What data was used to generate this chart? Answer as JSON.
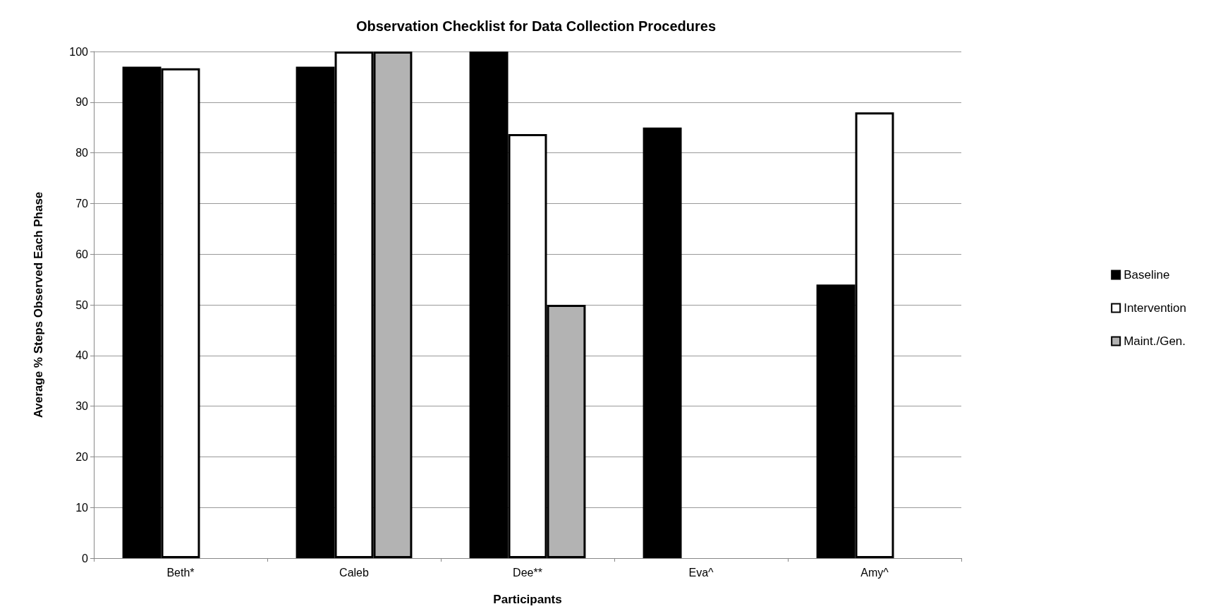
{
  "chart_data": {
    "type": "bar",
    "title": "Observation Checklist for Data Collection Procedures",
    "xlabel": "Participants",
    "ylabel": "Average % Steps Observed Each Phase",
    "categories": [
      "Beth*",
      "Caleb",
      "Dee**",
      "Eva^",
      "Amy^"
    ],
    "series": [
      {
        "name": "Baseline",
        "color": "#000000",
        "values": [
          97,
          97,
          100,
          85,
          54
        ]
      },
      {
        "name": "Intervention",
        "color": "#ffffff",
        "values": [
          96.7,
          100,
          83.7,
          null,
          88
        ]
      },
      {
        "name": "Maint./Gen.",
        "color": "#b3b3b3",
        "values": [
          null,
          100,
          50,
          null,
          null
        ]
      }
    ],
    "ylim": [
      0,
      100
    ],
    "yticks": [
      0,
      10,
      20,
      30,
      40,
      50,
      60,
      70,
      80,
      90,
      100
    ],
    "grid": "y",
    "legend": "right"
  }
}
